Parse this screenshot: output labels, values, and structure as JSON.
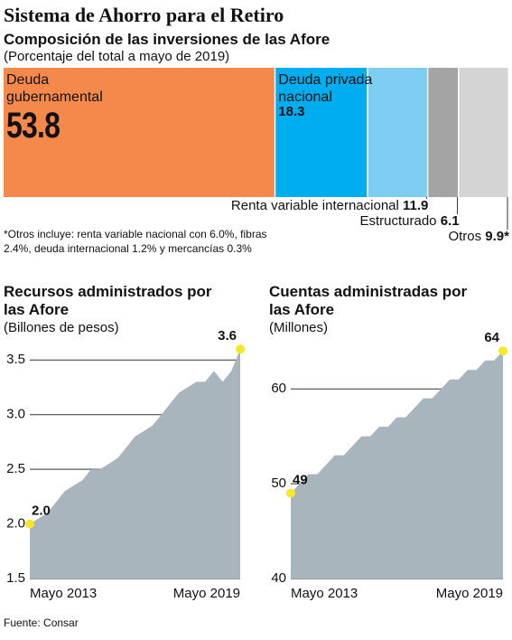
{
  "title": "Sistema de Ahorro para el Retiro",
  "chart_data": [
    {
      "type": "share",
      "title": "Composición de las inversiones de las Afore",
      "subtitle": "(Porcentaje del total a mayo de 2019)",
      "categories": [
        "Deuda gubernamental",
        "Deuda privada nacional",
        "Renta variable internacional",
        "Estructurado",
        "Otros"
      ],
      "values": [
        53.8,
        18.3,
        11.9,
        6.1,
        9.9
      ],
      "value_labels": [
        "53.8",
        "18.3",
        "11.9",
        "6.1",
        "9.9*"
      ],
      "colors": [
        "#f4894b",
        "#00aeef",
        "#7dcdf3",
        "#a4a4a4",
        "#d4d4d4"
      ],
      "note": "*Otros incluye: renta variable nacional con 6.0%, fibras 2.4%, deuda internacional 1.2% y mercancías 0.3%"
    },
    {
      "type": "area",
      "title": "Recursos administrados por las Afore",
      "subtitle": "(Billones de pesos)",
      "categories": [
        "Mayo 2013",
        null,
        null,
        null,
        null,
        null,
        null,
        null,
        null,
        null,
        null,
        null,
        null,
        null,
        null,
        null,
        null,
        null,
        null,
        null,
        null,
        null,
        null,
        null,
        "Mayo 2019"
      ],
      "values": [
        2.0,
        2.05,
        2.1,
        2.2,
        2.3,
        2.35,
        2.4,
        2.5,
        2.5,
        2.55,
        2.6,
        2.7,
        2.8,
        2.85,
        2.9,
        3.0,
        3.1,
        3.2,
        3.25,
        3.3,
        3.3,
        3.4,
        3.3,
        3.4,
        3.6
      ],
      "value_labels": [
        "2.0",
        null,
        null,
        null,
        null,
        null,
        null,
        null,
        null,
        null,
        null,
        null,
        null,
        null,
        null,
        null,
        null,
        null,
        null,
        null,
        null,
        null,
        null,
        null,
        "3.6"
      ],
      "data_labels": "ends",
      "color": "#a9b5bc",
      "ylim": [
        1.5,
        3.8
      ],
      "yticks": [
        1.5,
        {
          "value": 2,
          "label": "2.0"
        },
        2.5,
        {
          "value": 3,
          "label": "3.0"
        },
        3.5
      ],
      "grid": true
    },
    {
      "type": "area",
      "title": "Cuentas administradas por las Afore",
      "subtitle": "(Millones)",
      "categories": [
        "Mayo 2013",
        null,
        null,
        null,
        null,
        null,
        null,
        null,
        null,
        null,
        null,
        null,
        null,
        null,
        null,
        null,
        null,
        null,
        null,
        null,
        null,
        null,
        null,
        null,
        "Mayo 2019"
      ],
      "values": [
        49,
        50,
        51,
        51,
        52,
        53,
        53,
        54,
        55,
        55,
        56,
        56,
        57,
        57,
        58,
        59,
        59,
        60,
        61,
        61,
        62,
        62,
        63,
        63,
        64
      ],
      "data_labels": "ends",
      "color": "#a9b5bc",
      "ylim": [
        40,
        66.5
      ],
      "yticks": [
        40,
        50,
        60
      ],
      "grid": true
    }
  ],
  "source": "Fuente: Consar"
}
